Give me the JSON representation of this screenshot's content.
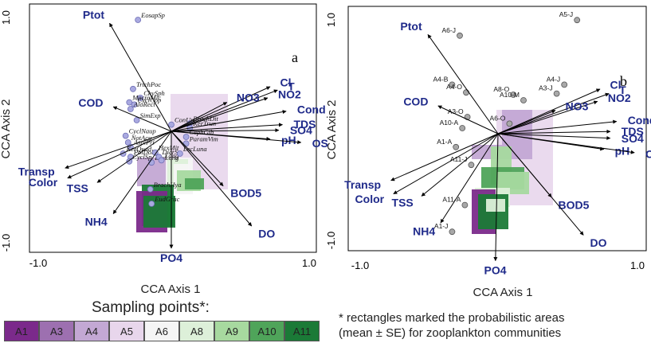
{
  "chart_data": [
    {
      "type": "scatter",
      "panel_label": "a",
      "xlabel": "CCA Axis 1",
      "ylabel": "CCA Axis 2",
      "xlim": [
        -1.0,
        1.0
      ],
      "ylim": [
        -1.0,
        1.0
      ],
      "x_ticks": [
        "-1.0",
        "1.0"
      ],
      "y_ticks": [
        "1.0",
        "-1.0"
      ],
      "env_vectors": [
        {
          "label": "Ptot",
          "x": -0.5,
          "y": 0.97
        },
        {
          "label": "Cl",
          "x": 0.8,
          "y": 0.4
        },
        {
          "label": "T",
          "x": 0.86,
          "y": 0.37
        },
        {
          "label": "NO2",
          "x": 0.78,
          "y": 0.3
        },
        {
          "label": "NO3",
          "x": 0.45,
          "y": 0.26
        },
        {
          "label": "Cond",
          "x": 0.93,
          "y": 0.18
        },
        {
          "label": "TDS",
          "x": 0.9,
          "y": 0.06
        },
        {
          "label": "SO4",
          "x": 0.87,
          "y": 0.01
        },
        {
          "label": "pH",
          "x": 0.8,
          "y": -0.07
        },
        {
          "label": "OS",
          "x": 1.05,
          "y": -0.1
        },
        {
          "label": "COD",
          "x": -0.47,
          "y": 0.22
        },
        {
          "label": "Transp",
          "x": -0.86,
          "y": -0.33
        },
        {
          "label": "Color",
          "x": -0.84,
          "y": -0.42
        },
        {
          "label": "TSS",
          "x": -0.6,
          "y": -0.46
        },
        {
          "label": "NH4",
          "x": -0.47,
          "y": -0.74
        },
        {
          "label": "BOD5",
          "x": 0.42,
          "y": -0.49
        },
        {
          "label": "DO",
          "x": 0.65,
          "y": -0.85
        },
        {
          "label": "PO4",
          "x": 0.0,
          "y": -1.05
        }
      ],
      "species": [
        {
          "label": "EosapSp",
          "x": -0.27,
          "y": 1.0
        },
        {
          "label": "TrichPoc",
          "x": -0.31,
          "y": 0.38
        },
        {
          "label": "ChySph",
          "x": -0.25,
          "y": 0.3
        },
        {
          "label": "MacroMic",
          "x": -0.34,
          "y": 0.26
        },
        {
          "label": "CyclCop",
          "x": -0.3,
          "y": 0.24
        },
        {
          "label": "AloRect",
          "x": -0.33,
          "y": 0.2
        },
        {
          "label": "SimExp",
          "x": -0.28,
          "y": 0.1
        },
        {
          "label": "CyclNaup",
          "x": -0.37,
          "y": -0.04
        },
        {
          "label": "NotAcu",
          "x": -0.35,
          "y": -0.1
        },
        {
          "label": "AsplPri",
          "x": -0.33,
          "y": -0.14
        },
        {
          "label": "KerQuad",
          "x": -0.39,
          "y": -0.2
        },
        {
          "label": "PolDol",
          "x": -0.33,
          "y": -0.23
        },
        {
          "label": "CyclSp",
          "x": -0.34,
          "y": -0.27
        },
        {
          "label": "BosLong",
          "x": -0.16,
          "y": -0.28
        },
        {
          "label": "DicrSp",
          "x": -0.1,
          "y": -0.23
        },
        {
          "label": "Long",
          "x": -0.08,
          "y": -0.26
        },
        {
          "label": "HexMit",
          "x": -0.13,
          "y": -0.19
        },
        {
          "label": "ConUn",
          "x": 0.0,
          "y": 0.06
        },
        {
          "label": "BrachDit",
          "x": 0.15,
          "y": 0.07
        },
        {
          "label": "KerTrun",
          "x": 0.15,
          "y": 0.03
        },
        {
          "label": "CephGib",
          "x": 0.12,
          "y": -0.05
        },
        {
          "label": "ParamVim",
          "x": 0.12,
          "y": -0.11
        },
        {
          "label": "LecLuna",
          "x": 0.07,
          "y": -0.2
        },
        {
          "label": "BrachHya",
          "x": -0.17,
          "y": -0.52
        },
        {
          "label": "EudGrac",
          "x": -0.16,
          "y": -0.65
        }
      ]
    },
    {
      "type": "scatter",
      "panel_label": "b",
      "xlabel": "CCA Axis 1",
      "ylabel": "CCA Axis 2",
      "xlim": [
        -1.0,
        1.0
      ],
      "ylim": [
        -1.0,
        1.0
      ],
      "x_ticks": [
        "-1.0",
        "1.0"
      ],
      "y_ticks": [
        "1.0",
        "-1.0"
      ],
      "env_vectors": [
        {
          "label": "Ptot",
          "x": -0.55,
          "y": 0.89
        },
        {
          "label": "Cl",
          "x": 0.8,
          "y": 0.4
        },
        {
          "label": "T",
          "x": 0.87,
          "y": 0.36
        },
        {
          "label": "NO2",
          "x": 0.78,
          "y": 0.29
        },
        {
          "label": "NO3",
          "x": 0.45,
          "y": 0.21
        },
        {
          "label": "Cond",
          "x": 0.93,
          "y": 0.11
        },
        {
          "label": "TDS",
          "x": 0.88,
          "y": 0.02
        },
        {
          "label": "SO4",
          "x": 0.88,
          "y": -0.04
        },
        {
          "label": "pH",
          "x": 0.83,
          "y": -0.14
        },
        {
          "label": "OS",
          "x": 1.07,
          "y": -0.17
        },
        {
          "label": "COD",
          "x": -0.47,
          "y": 0.25
        },
        {
          "label": "Transp",
          "x": -0.84,
          "y": -0.42
        },
        {
          "label": "Color",
          "x": -0.82,
          "y": -0.54
        },
        {
          "label": "TSS",
          "x": -0.6,
          "y": -0.56
        },
        {
          "label": "NH4",
          "x": -0.45,
          "y": -0.8
        },
        {
          "label": "BOD5",
          "x": 0.42,
          "y": -0.57
        },
        {
          "label": "DO",
          "x": 0.67,
          "y": -0.91
        },
        {
          "label": "PO4",
          "x": -0.02,
          "y": -1.14
        }
      ],
      "sites": [
        {
          "label": "A5-J",
          "x": 0.62,
          "y": 1.02
        },
        {
          "label": "A6-J",
          "x": -0.3,
          "y": 0.88
        },
        {
          "label": "A4-B",
          "x": -0.36,
          "y": 0.44
        },
        {
          "label": "A4-J",
          "x": 0.52,
          "y": 0.44
        },
        {
          "label": "A4-O",
          "x": -0.25,
          "y": 0.37
        },
        {
          "label": "A3-J",
          "x": 0.46,
          "y": 0.36
        },
        {
          "label": "A8-O",
          "x": 0.12,
          "y": 0.35
        },
        {
          "label": "A10-M",
          "x": 0.2,
          "y": 0.3
        },
        {
          "label": "A3-O",
          "x": -0.24,
          "y": 0.15
        },
        {
          "label": "A6-O",
          "x": 0.09,
          "y": 0.09
        },
        {
          "label": "A10-A",
          "x": -0.28,
          "y": 0.05
        },
        {
          "label": "A1-A",
          "x": -0.33,
          "y": -0.12
        },
        {
          "label": "A11-J",
          "x": -0.21,
          "y": -0.28
        },
        {
          "label": "A11-A",
          "x": -0.26,
          "y": -0.64
        },
        {
          "label": "A1-J",
          "x": -0.36,
          "y": -0.88
        }
      ],
      "legend_title": "Sampling points*:",
      "legend": [
        "A1",
        "A3",
        "A4",
        "A5",
        "A6",
        "A8",
        "A9",
        "A10",
        "A11"
      ],
      "legend_colors": [
        "#7b2a8b",
        "#9d70b0",
        "#c3a8d4",
        "#e8d6ec",
        "#f5f5f5",
        "#ddf0d9",
        "#a7d99f",
        "#4fa45a",
        "#1b7a37"
      ],
      "footnote_lines": [
        "* rectangles marked the probabilistic areas",
        "(mean ± SE) for zooplankton communities"
      ]
    }
  ]
}
